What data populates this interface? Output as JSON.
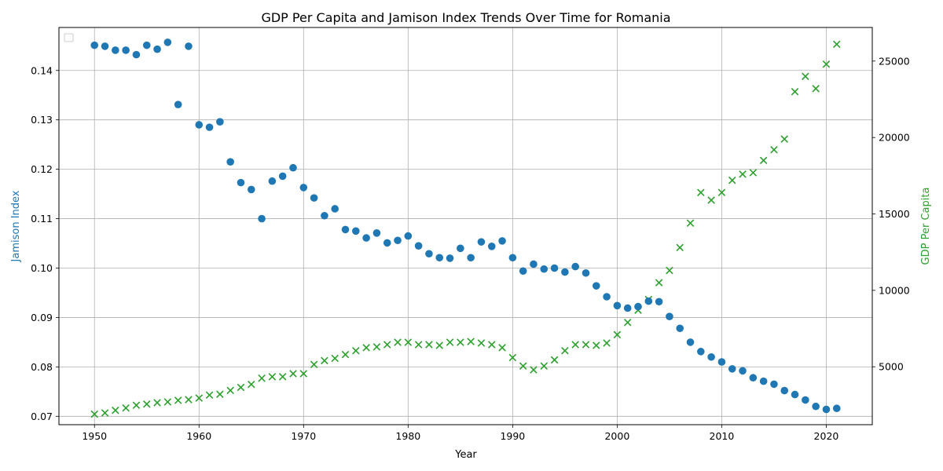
{
  "chart_data": {
    "type": "scatter",
    "title": "GDP Per Capita and Jamison Index Trends Over Time for Romania",
    "xlabel": "Year",
    "ylabel": "Jamison Index",
    "y2label": "GDP Per Capita",
    "xlim": [
      1946.6,
      2024.4
    ],
    "ylim": [
      0.0683,
      0.1487
    ],
    "y2lim": [
      1210,
      27200
    ],
    "x_ticks": [
      1950,
      1960,
      1970,
      1980,
      1990,
      2000,
      2010,
      2020
    ],
    "y_ticks": [
      0.07,
      0.08,
      0.09,
      0.1,
      0.11,
      0.12,
      0.13,
      0.14
    ],
    "y_tick_labels": [
      "0.07",
      "0.08",
      "0.09",
      "0.10",
      "0.11",
      "0.12",
      "0.13",
      "0.14"
    ],
    "y2_ticks": [
      5000,
      10000,
      15000,
      20000,
      25000
    ],
    "y2_tick_labels": [
      "5000",
      "10000",
      "15000",
      "20000",
      "25000"
    ],
    "grid": true,
    "legend": "top-left (empty)",
    "colors": {
      "jamison": "#1f77b4",
      "gdp": "#2ca02c",
      "grid": "#b0b0b0",
      "axis": "#000000"
    },
    "series": [
      {
        "axis": "left",
        "marker": "circle",
        "x": [
          1950,
          1951,
          1952,
          1953,
          1954,
          1955,
          1956,
          1957,
          1958,
          1959,
          1960,
          1961,
          1962,
          1963,
          1964,
          1965,
          1966,
          1967,
          1968,
          1969,
          1970,
          1971,
          1972,
          1973,
          1974,
          1975,
          1976,
          1977,
          1978,
          1979,
          1980,
          1981,
          1982,
          1983,
          1984,
          1985,
          1986,
          1987,
          1988,
          1989,
          1990,
          1991,
          1992,
          1993,
          1994,
          1995,
          1996,
          1997,
          1998,
          1999,
          2000,
          2001,
          2002,
          2003,
          2004,
          2005,
          2006,
          2007,
          2008,
          2009,
          2010,
          2011,
          2012,
          2013,
          2014,
          2015,
          2016,
          2017,
          2018,
          2019,
          2020,
          2021
        ],
        "values": [
          0.1451,
          0.1449,
          0.1441,
          0.1441,
          0.1432,
          0.1451,
          0.1443,
          0.1457,
          0.1331,
          0.1449,
          0.129,
          0.1285,
          0.1296,
          0.1215,
          0.1173,
          0.1159,
          0.11,
          0.1176,
          0.1186,
          0.1203,
          0.1163,
          0.1142,
          0.1106,
          0.112,
          0.1078,
          0.1075,
          0.1061,
          0.1071,
          0.1051,
          0.1056,
          0.1065,
          0.1045,
          0.1029,
          0.1021,
          0.102,
          0.104,
          0.1021,
          0.1053,
          0.1044,
          0.1055,
          0.1021,
          0.0994,
          0.1008,
          0.0998,
          0.1,
          0.0992,
          0.1003,
          0.099,
          0.0964,
          0.0942,
          0.0924,
          0.0919,
          0.0922,
          0.0933,
          0.0932,
          0.0902,
          0.0878,
          0.085,
          0.0831,
          0.082,
          0.081,
          0.0796,
          0.0792,
          0.0778,
          0.0771,
          0.0765,
          0.0752,
          0.0744,
          0.0733,
          0.072,
          0.0714,
          0.0716
        ]
      },
      {
        "axis": "right",
        "marker": "x",
        "x": [
          1950,
          1951,
          1952,
          1953,
          1954,
          1955,
          1956,
          1957,
          1958,
          1959,
          1960,
          1961,
          1962,
          1963,
          1964,
          1965,
          1966,
          1967,
          1968,
          1969,
          1970,
          1971,
          1972,
          1973,
          1974,
          1975,
          1976,
          1977,
          1978,
          1979,
          1980,
          1981,
          1982,
          1983,
          1984,
          1985,
          1986,
          1987,
          1988,
          1989,
          1990,
          1991,
          1992,
          1993,
          1994,
          1995,
          1996,
          1997,
          1998,
          1999,
          2000,
          2001,
          2002,
          2003,
          2004,
          2005,
          2006,
          2007,
          2008,
          2009,
          2010,
          2011,
          2012,
          2013,
          2014,
          2015,
          2016,
          2017,
          2018,
          2019,
          2020,
          2021
        ],
        "values": [
          1900,
          1980,
          2150,
          2300,
          2480,
          2560,
          2650,
          2700,
          2800,
          2850,
          2950,
          3150,
          3200,
          3450,
          3650,
          3850,
          4250,
          4350,
          4350,
          4550,
          4550,
          5150,
          5400,
          5550,
          5800,
          6050,
          6250,
          6300,
          6450,
          6600,
          6600,
          6450,
          6450,
          6400,
          6600,
          6600,
          6650,
          6550,
          6450,
          6250,
          5600,
          5050,
          4800,
          5050,
          5450,
          6050,
          6450,
          6450,
          6400,
          6550,
          7100,
          7900,
          8700,
          9400,
          10500,
          11300,
          12800,
          14400,
          16400,
          15900,
          16400,
          17200,
          17600,
          17700,
          18500,
          19200,
          19900,
          23000,
          24000,
          23200,
          24800,
          26100
        ]
      }
    ]
  }
}
